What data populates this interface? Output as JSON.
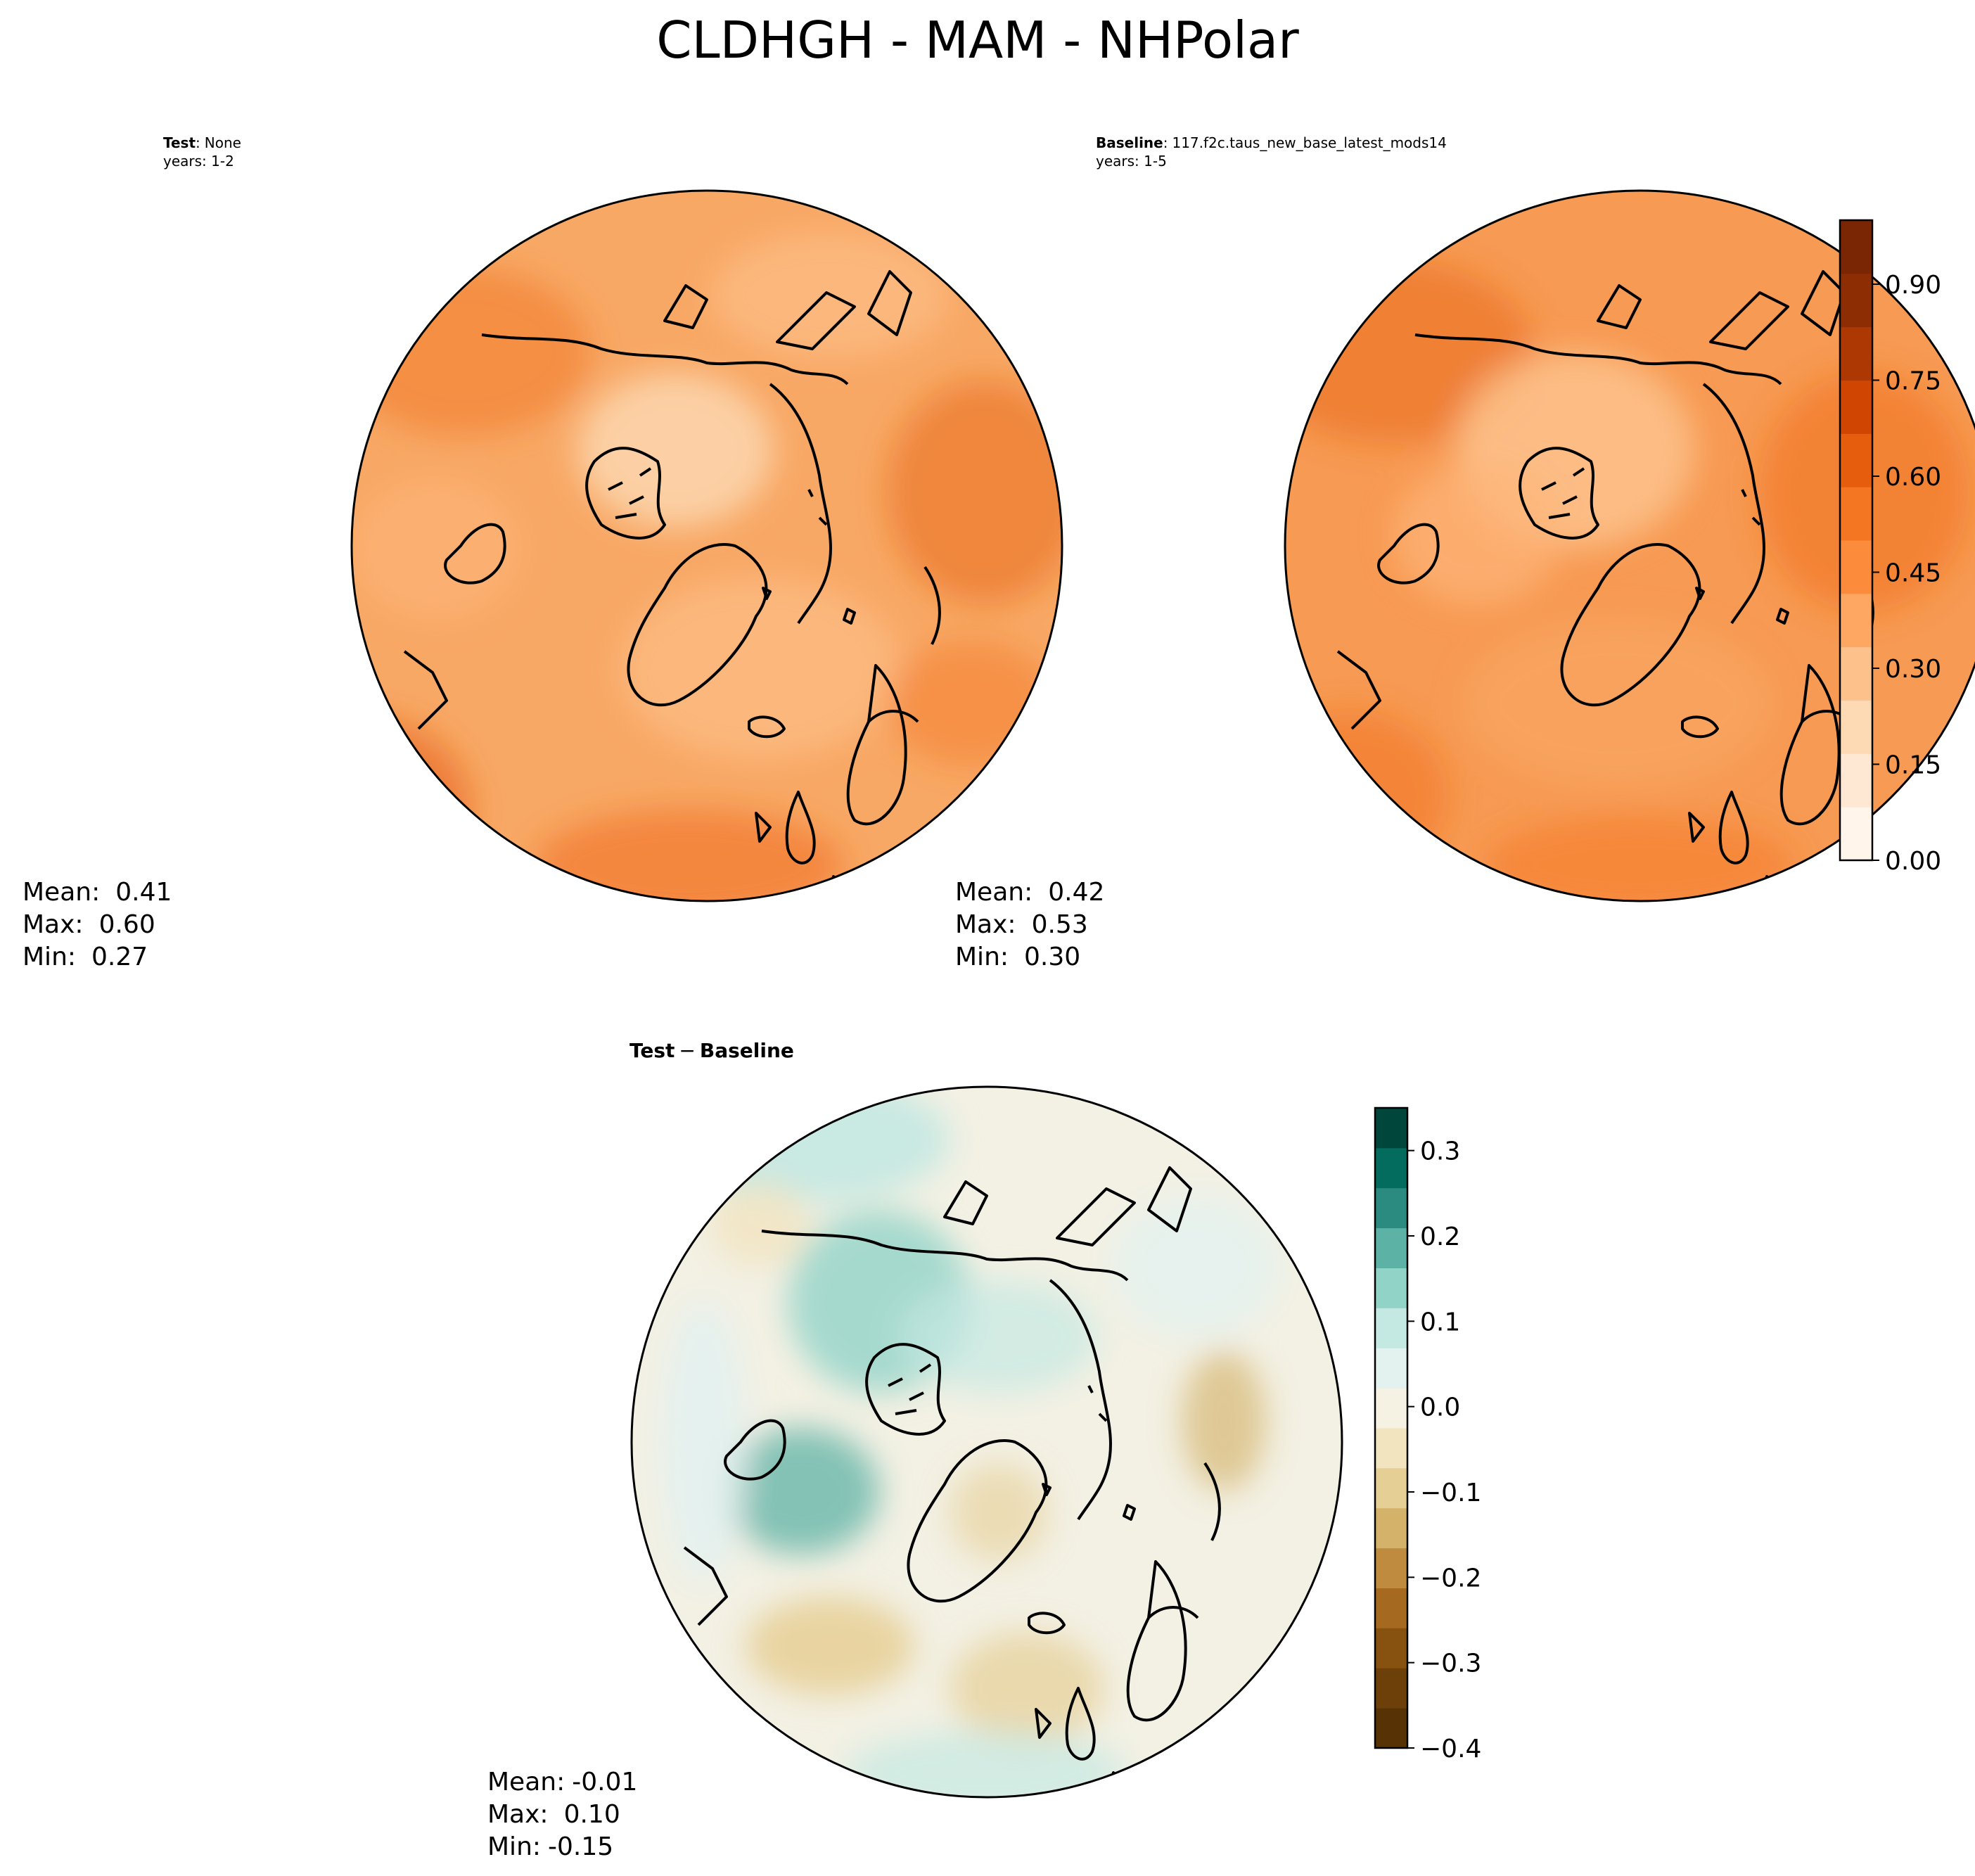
{
  "figure": {
    "title": "CLDHGH - MAM - NHPolar"
  },
  "panels": [
    {
      "id": "test",
      "title_bold": "Test",
      "title_sep": ":",
      "title_value": "None",
      "subtitle": "years: 1-2",
      "stats": {
        "mean_label": "Mean:",
        "mean": "0.41",
        "max_label": "Max:",
        "max": "0.60",
        "min_label": "Min:",
        "min": "0.27"
      }
    },
    {
      "id": "baseline",
      "title_bold": "Baseline",
      "title_sep": ":",
      "title_value": "117.f2c.taus_new_base_latest_mods14",
      "subtitle": "years: 1-5",
      "stats": {
        "mean_label": "Mean:",
        "mean": "0.42",
        "max_label": "Max:",
        "max": "0.53",
        "min_label": "Min:",
        "min": "0.30"
      }
    },
    {
      "id": "diff",
      "title_bold_a": "Test",
      "title_op": "−",
      "title_bold_b": "Baseline",
      "stats": {
        "mean_label": "Mean:",
        "mean": "-0.01",
        "max_label": "Max:",
        "max": "0.10",
        "min_label": "Min:",
        "min": "-0.15"
      }
    }
  ],
  "colorbars": {
    "top": {
      "ticks": [
        "0.00",
        "0.15",
        "0.30",
        "0.45",
        "0.60",
        "0.75",
        "0.90"
      ],
      "tick_values": [
        0.0,
        0.15,
        0.3,
        0.45,
        0.6,
        0.75,
        0.9
      ],
      "range": [
        0.0,
        1.0
      ],
      "levels": [
        "#fff5eb",
        "#fee8d3",
        "#fdd9b4",
        "#fdc28c",
        "#fda762",
        "#fc8c3b",
        "#f57622",
        "#e55d0d",
        "#d04501",
        "#ad3803",
        "#8c2d04",
        "#7a2503"
      ]
    },
    "diff": {
      "ticks": [
        "0.3",
        "0.2",
        "0.1",
        "0.0",
        "−0.1",
        "−0.2",
        "−0.3",
        "−0.4"
      ],
      "tick_values": [
        0.3,
        0.2,
        0.1,
        0.0,
        -0.1,
        -0.2,
        -0.3,
        -0.4
      ],
      "range": [
        -0.4,
        0.35
      ],
      "levels_bottom_to_top": [
        "#573205",
        "#6d3f09",
        "#87510f",
        "#a56a1f",
        "#bf8b3e",
        "#d4b26a",
        "#e6cf95",
        "#f1e4bf",
        "#f5f1e3",
        "#e3f1ef",
        "#c4e8e2",
        "#92d3c8",
        "#5db2a6",
        "#2c8b80",
        "#036c5f",
        "#00463a"
      ]
    }
  },
  "colors": {
    "test_base": "#f8a865",
    "baseline_base": "#f79a53",
    "diff_base": "#f3f1e4",
    "coastline": "#000000"
  }
}
